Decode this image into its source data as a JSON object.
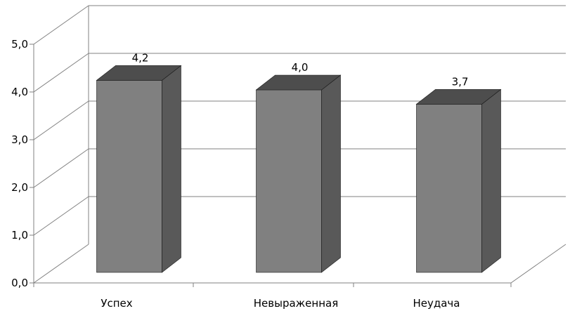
{
  "chart_data": {
    "type": "bar",
    "style": "3d-column",
    "categories": [
      "Успех",
      "Невыраженная",
      "Неудача"
    ],
    "values": [
      4.2,
      4.0,
      3.7
    ],
    "data_labels": [
      "4,2",
      "4,0",
      "3,7"
    ],
    "y_ticks": [
      "0,0",
      "1,0",
      "2,0",
      "3,0",
      "4,0",
      "5,0"
    ],
    "ylim": [
      0,
      5
    ],
    "grid": true,
    "legend": "none",
    "colors": {
      "bar_front": "#808080",
      "bar_side": "#595959",
      "bar_top": "#4d4d4d",
      "grid": "#808080",
      "edge": "#1a1a1a"
    }
  }
}
